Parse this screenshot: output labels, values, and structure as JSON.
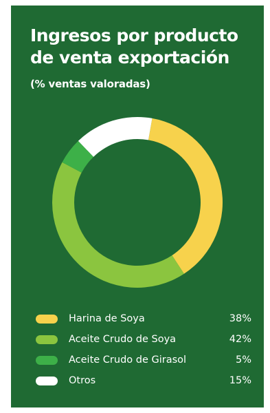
{
  "card": {
    "background": "#1f6a33"
  },
  "chart_data": {
    "type": "pie",
    "title": "Ingresos por producto de venta exportación",
    "subtitle": "(% ventas valoradas)",
    "legend_position": "bottom",
    "series": [
      {
        "name": "Harina de Soya",
        "value": 38,
        "label": "38%",
        "color": "#f7d24c"
      },
      {
        "name": "Aceite Crudo de Soya",
        "value": 42,
        "label": "42%",
        "color": "#8bc53f"
      },
      {
        "name": "Aceite Crudo de Girasol",
        "value": 5,
        "label": "5%",
        "color": "#3db048"
      },
      {
        "name": "Otros",
        "value": 15,
        "label": "15%",
        "color": "#ffffff"
      }
    ]
  }
}
